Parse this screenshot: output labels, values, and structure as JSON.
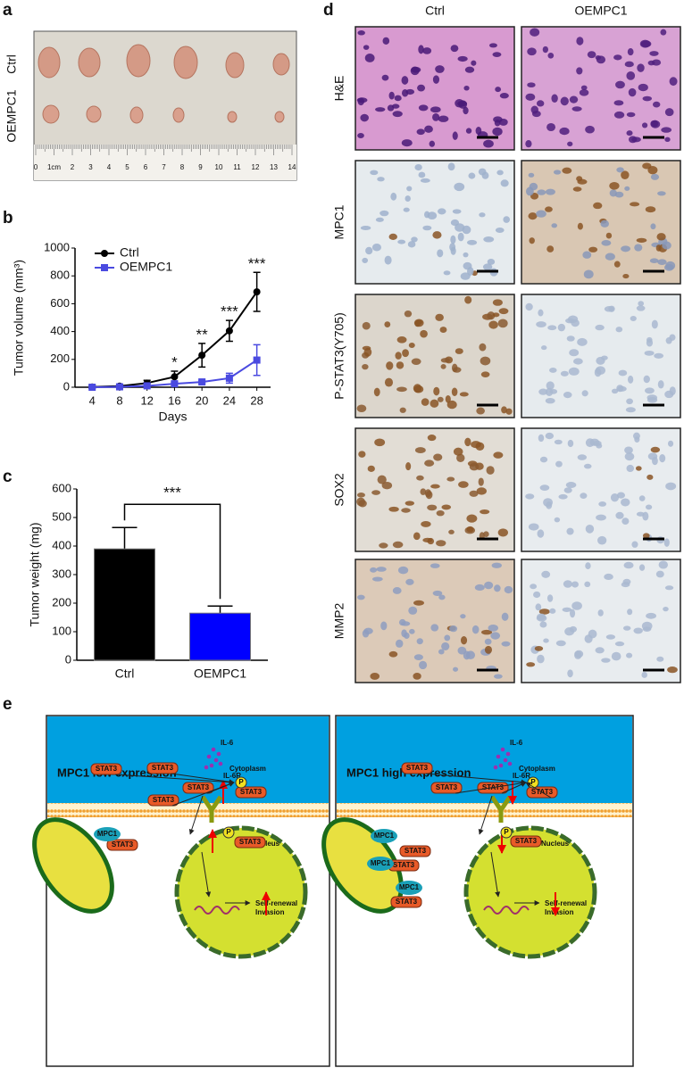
{
  "panel_labels": [
    "a",
    "b",
    "c",
    "d",
    "e"
  ],
  "tumor_photo": {
    "row_labels": [
      "Ctrl",
      "OEMPC1"
    ],
    "ruler_labels": [
      "0",
      "1cm",
      "2",
      "3",
      "4",
      "5",
      "6",
      "7",
      "8",
      "9",
      "10",
      "11",
      "12",
      "13",
      "14"
    ]
  },
  "chart_data": [
    {
      "type": "line",
      "xlabel": "Days",
      "ylabel": "Tumor volume (mm³)",
      "x": [
        4,
        8,
        12,
        16,
        20,
        24,
        28
      ],
      "xlim": [
        1.5,
        30
      ],
      "xticks": [
        4,
        8,
        12,
        16,
        20,
        24,
        28
      ],
      "ylim": [
        0,
        1000
      ],
      "yticks": [
        0,
        200,
        400,
        600,
        800,
        1000
      ],
      "legend": "upper left",
      "series": [
        {
          "name": "Ctrl",
          "color": "#000000",
          "marker": "circle",
          "values": [
            2,
            8,
            30,
            75,
            230,
            405,
            685
          ],
          "errors": [
            10,
            10,
            20,
            40,
            85,
            75,
            140
          ]
        },
        {
          "name": "OEMPC1",
          "color": "#4a4ae0",
          "marker": "square",
          "values": [
            0,
            3,
            10,
            25,
            38,
            65,
            195
          ],
          "errors": [
            5,
            5,
            10,
            15,
            10,
            35,
            110
          ]
        }
      ],
      "annotations": [
        {
          "x": 16,
          "text": "*"
        },
        {
          "x": 20,
          "text": "**"
        },
        {
          "x": 24,
          "text": "***"
        },
        {
          "x": 28,
          "text": "***"
        }
      ]
    },
    {
      "type": "bar",
      "ylabel": "Tumor weight (mg)",
      "categories": [
        "Ctrl",
        "OEMPC1"
      ],
      "values": [
        390,
        165
      ],
      "errors": [
        75,
        25
      ],
      "colors": [
        "#000000",
        "#0000ff"
      ],
      "ylim": [
        0,
        600
      ],
      "yticks": [
        0,
        100,
        200,
        300,
        400,
        500,
        600
      ],
      "annotation": "***"
    }
  ],
  "ihc": {
    "columns": [
      "Ctrl",
      "OEMPC1"
    ],
    "rows": [
      "H&E",
      "MPC1",
      "P-STAT3(Y705)",
      "SOX2",
      "MMP2"
    ]
  },
  "diagram": {
    "panels": [
      {
        "title": "MPC1 low expression",
        "il6": "IL-6",
        "il6r": "IL-6R",
        "cytoplasm": "Cytoplasm",
        "nucleus": "Nucleus",
        "self_renewal": "Self-renewal",
        "invasion": "Invasion",
        "stat3": [
          "STAT3",
          "STAT3",
          "STAT3",
          "STAT3",
          "STAT3",
          "STAT3",
          "STAT3"
        ],
        "mpc1": [
          "MPC1"
        ],
        "p": [
          "P",
          "P"
        ]
      },
      {
        "title": "MPC1 high expression",
        "il6": "IL-6",
        "il6r": "IL-6R",
        "cytoplasm": "Cytoplasm",
        "nucleus": "Nucleus",
        "self_renewal": "Self-renewal",
        "invasion": "Invasion",
        "stat3": [
          "STAT3",
          "STAT3",
          "STAT3",
          "STAT3",
          "STAT3",
          "STAT3",
          "STAT3",
          "STAT3"
        ],
        "mpc1": [
          "MPC1",
          "MPC1",
          "MPC1"
        ],
        "p": [
          "P",
          "P"
        ]
      }
    ]
  }
}
